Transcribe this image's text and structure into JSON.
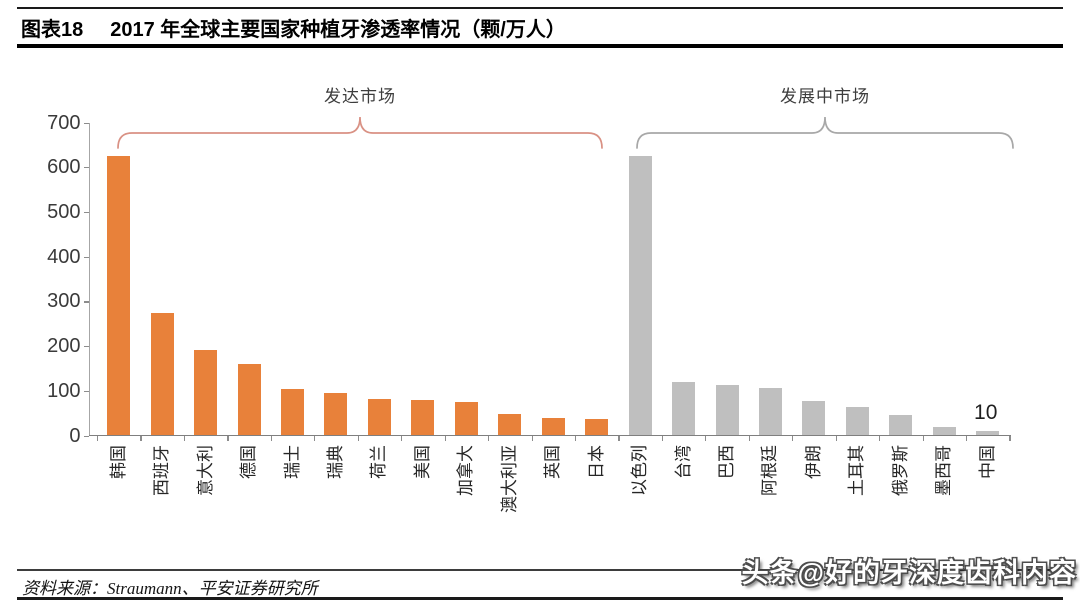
{
  "header": {
    "figure_label": "图表18",
    "title": "2017 年全球主要国家种植牙渗透率情况（颗/万人）"
  },
  "chart_data": {
    "type": "bar",
    "title": "2017 年全球主要国家种植牙渗透率情况（颗/万人）",
    "unit": "颗/万人",
    "ylim": [
      0,
      700
    ],
    "yticks": [
      0,
      100,
      200,
      300,
      400,
      500,
      600,
      700
    ],
    "grid": false,
    "legend": "none",
    "categories": [
      "韩国",
      "西班牙",
      "意大利",
      "德国",
      "瑞士",
      "瑞典",
      "荷兰",
      "美国",
      "加拿大",
      "澳大利亚",
      "英国",
      "日本",
      "以色列",
      "台湾",
      "巴西",
      "阿根廷",
      "伊朗",
      "土耳其",
      "俄罗斯",
      "墨西哥",
      "中国"
    ],
    "values": [
      625,
      275,
      192,
      160,
      103,
      96,
      82,
      79,
      74,
      48,
      39,
      37,
      626,
      119,
      113,
      107,
      78,
      63,
      46,
      18,
      10
    ],
    "groups": [
      {
        "label": "发达市场",
        "start_index": 0,
        "end_index": 11,
        "bar_color": "#E8813A",
        "brace_color": "#D99184"
      },
      {
        "label": "发展中市场",
        "start_index": 12,
        "end_index": 20,
        "bar_color": "#BFBFBF",
        "brace_color": "#A8A8A8"
      }
    ],
    "data_labels": [
      {
        "category": "中国",
        "index": 20,
        "text": "10"
      }
    ]
  },
  "footer": {
    "source": "资料来源：Straumann、平安证券研究所",
    "watermark": "头条@好的牙深度齿科内容"
  }
}
